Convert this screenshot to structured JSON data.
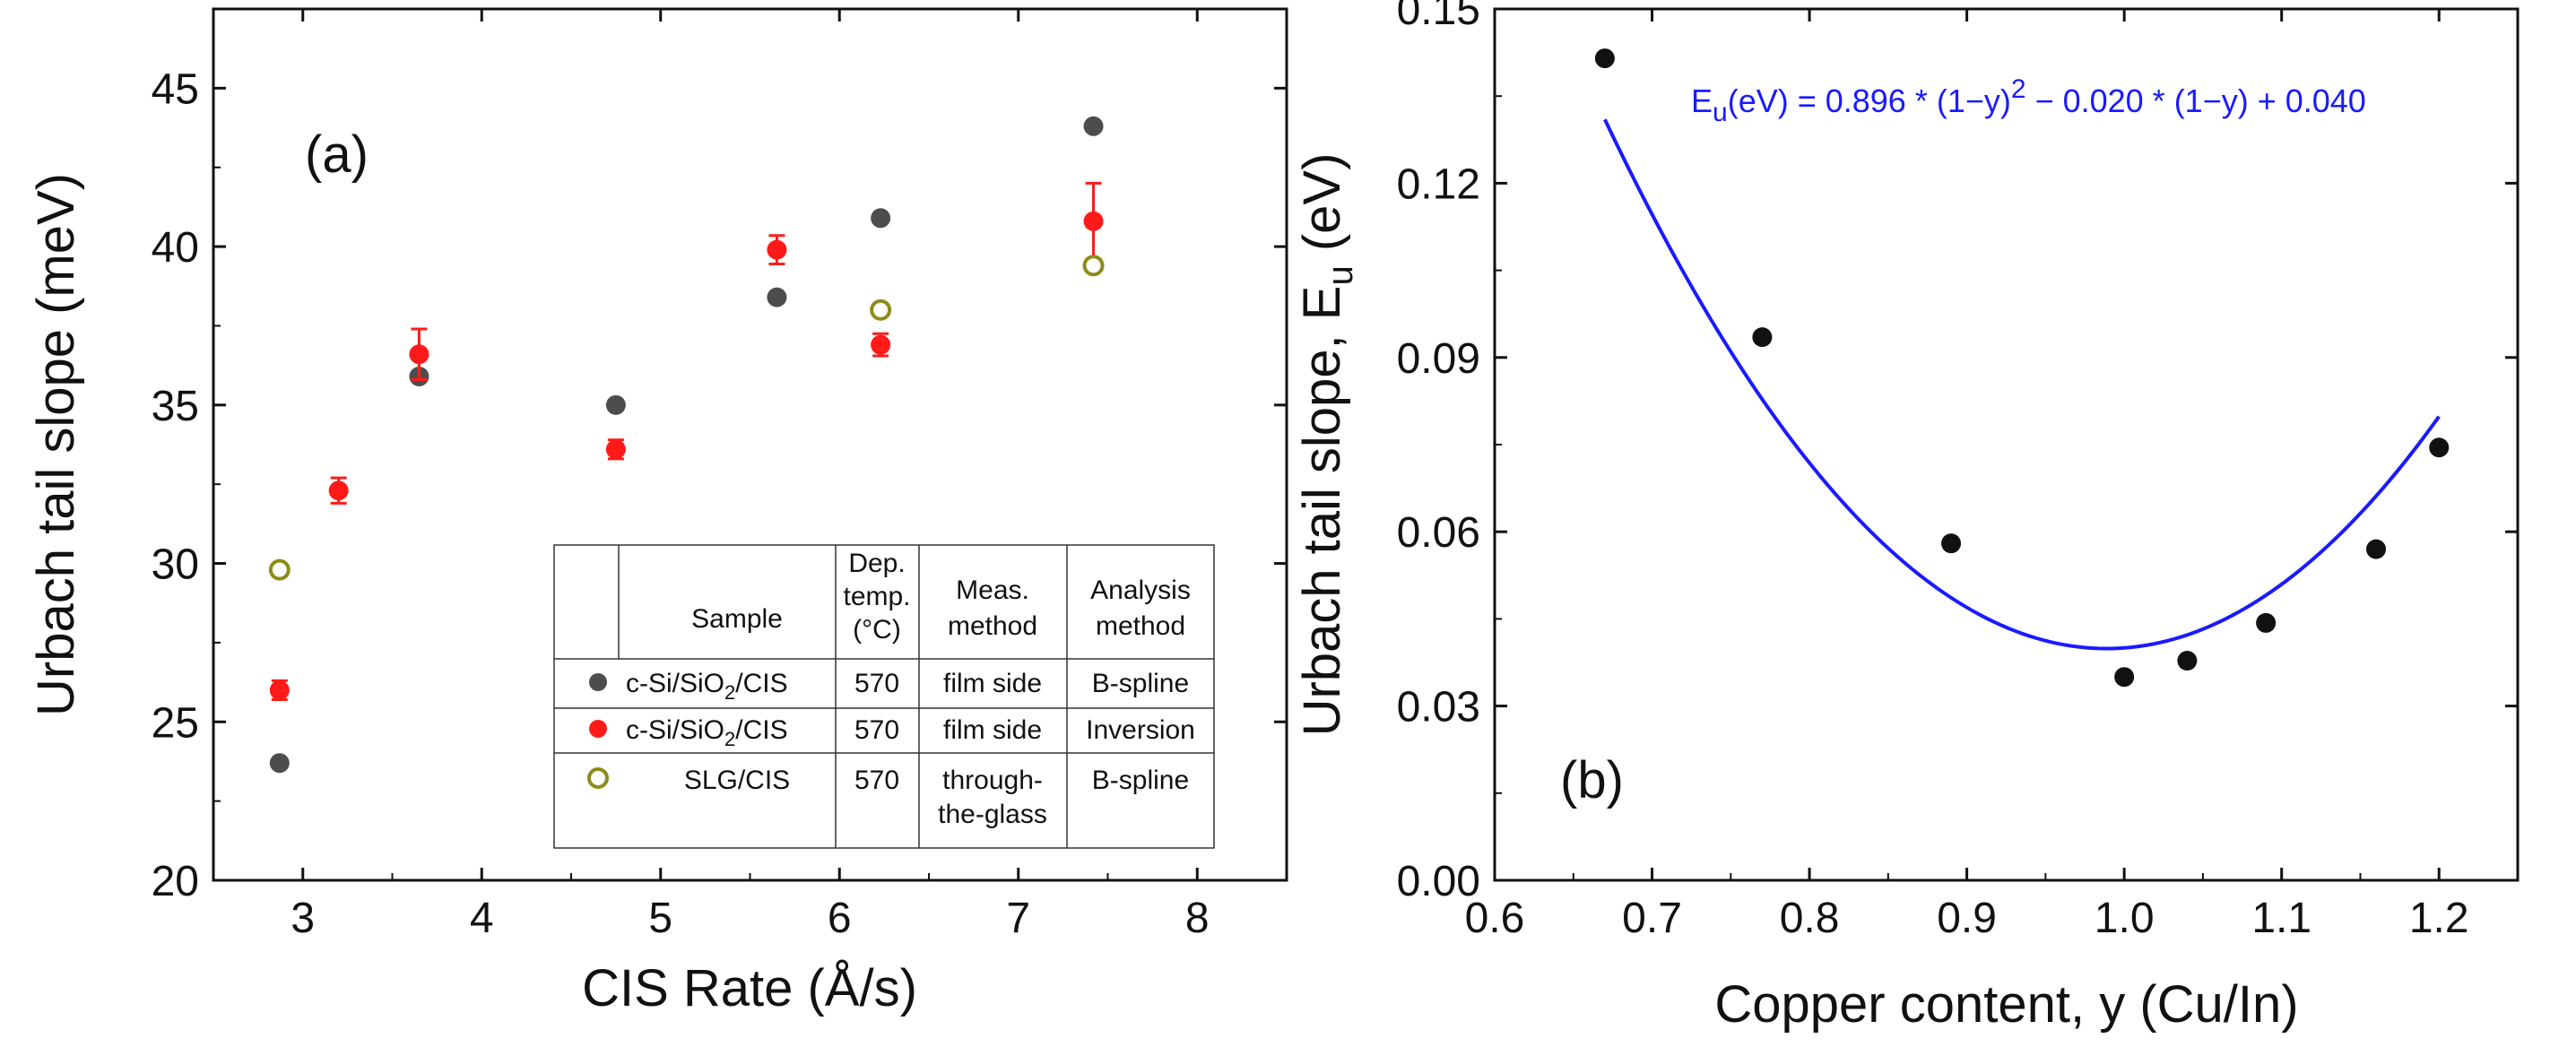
{
  "chart_data": [
    {
      "type": "scatter",
      "panel_label": "(a)",
      "xlabel": "CIS Rate (Å/s)",
      "ylabel": "Urbach tail slope (meV)",
      "xlim": [
        2.5,
        8.5
      ],
      "ylim": [
        20,
        47.5
      ],
      "xticks": [
        3,
        4,
        5,
        6,
        7,
        8
      ],
      "yticks": [
        20,
        25,
        30,
        35,
        40,
        45
      ],
      "series": [
        {
          "name": "c-Si/SiO2/CIS B-spline",
          "color": "#4d4d4d",
          "marker": "filled-circle",
          "points": [
            [
              2.87,
              23.7
            ],
            [
              3.65,
              35.9
            ],
            [
              4.75,
              35.0
            ],
            [
              5.65,
              38.4
            ],
            [
              6.23,
              40.9
            ],
            [
              7.42,
              43.8
            ]
          ]
        },
        {
          "name": "c-Si/SiO2/CIS Inversion",
          "color": "#ff1a1a",
          "marker": "filled-circle",
          "points": [
            [
              2.87,
              26.0,
              0.3
            ],
            [
              3.2,
              32.3,
              0.4
            ],
            [
              3.65,
              36.6,
              0.8
            ],
            [
              4.75,
              33.6,
              0.3
            ],
            [
              5.65,
              39.9,
              0.45
            ],
            [
              6.23,
              36.9,
              0.35
            ],
            [
              7.42,
              40.8,
              1.2
            ]
          ]
        },
        {
          "name": "SLG/CIS B-spline",
          "color": "#8c8c1a",
          "marker": "open-circle",
          "points": [
            [
              2.87,
              29.8
            ],
            [
              6.23,
              38.0
            ],
            [
              7.42,
              39.4
            ]
          ]
        }
      ],
      "legend_table": {
        "headers": [
          "Sample",
          "Dep. temp. (°C)",
          "Meas. method",
          "Analysis method"
        ],
        "header_lines": {
          "sample": "Sample",
          "dep": [
            "Dep.",
            "temp.",
            "(°C)"
          ],
          "meas": [
            "Meas.",
            "method"
          ],
          "analysis": [
            "Analysis",
            "method"
          ]
        },
        "rows": [
          {
            "sample": "c-Si/SiO",
            "sample_sub": "2",
            "sample_tail": "/CIS",
            "temp": "570",
            "meas": [
              "film side"
            ],
            "analysis": "B-spline"
          },
          {
            "sample": "c-Si/SiO",
            "sample_sub": "2",
            "sample_tail": "/CIS",
            "temp": "570",
            "meas": [
              "film side"
            ],
            "analysis": "Inversion"
          },
          {
            "sample": "SLG/CIS",
            "sample_sub": "",
            "sample_tail": "",
            "temp": "570",
            "meas": [
              "through-",
              "the-glass"
            ],
            "analysis": "B-spline"
          }
        ]
      }
    },
    {
      "type": "scatter",
      "panel_label": "(b)",
      "xlabel": "Copper content, y (Cu/In)",
      "ylabel_main": "Urbach tail slope, E",
      "ylabel_sub": "u",
      "ylabel_tail": " (eV)",
      "xlim": [
        0.6,
        1.25
      ],
      "ylim": [
        0.0,
        0.15
      ],
      "xticks": [
        "0.6",
        "0.7",
        "0.8",
        "0.9",
        "1.0",
        "1.1",
        "1.2"
      ],
      "yticks": [
        "0.00",
        "0.03",
        "0.06",
        "0.09",
        "0.12",
        "0.15"
      ],
      "points": [
        [
          0.67,
          0.1415
        ],
        [
          0.77,
          0.0935
        ],
        [
          0.89,
          0.058
        ],
        [
          1.0,
          0.035
        ],
        [
          1.04,
          0.0378
        ],
        [
          1.09,
          0.0443
        ],
        [
          1.16,
          0.057
        ],
        [
          1.2,
          0.0745
        ]
      ],
      "fit": {
        "a": 0.896,
        "b": -0.02,
        "c": 0.04,
        "x_range": [
          0.67,
          1.2
        ],
        "color": "#1a1aff",
        "label_parts": [
          "E",
          "u",
          "(eV) = 0.896 * (1−y)",
          "2",
          " − 0.020 * (1−y) + 0.040"
        ]
      }
    }
  ]
}
